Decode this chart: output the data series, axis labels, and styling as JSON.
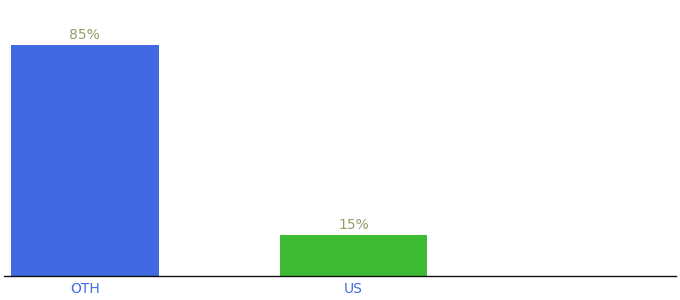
{
  "categories": [
    "OTH",
    "US"
  ],
  "values": [
    85,
    15
  ],
  "bar_colors": [
    "#4169e1",
    "#3dbb35"
  ],
  "label_texts": [
    "85%",
    "15%"
  ],
  "label_color": "#999966",
  "ylim": [
    0,
    100
  ],
  "background_color": "#ffffff",
  "bar_width": 0.55,
  "label_fontsize": 10,
  "tick_fontsize": 10,
  "tick_color": "#4169e1"
}
